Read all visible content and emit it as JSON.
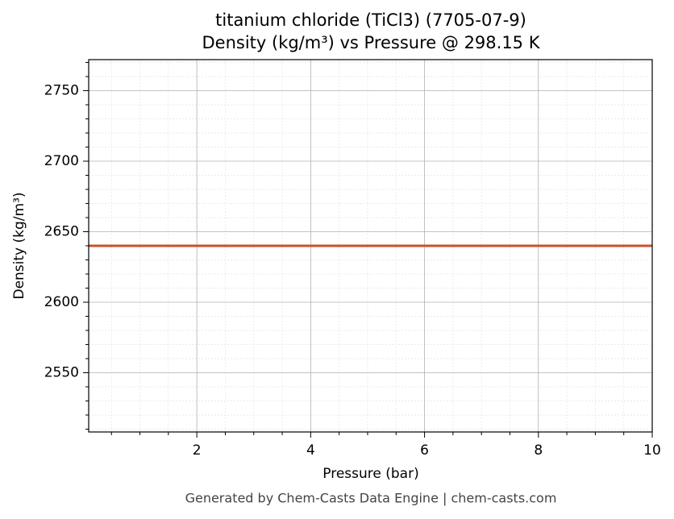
{
  "chart_data": {
    "type": "line",
    "title": "titanium chloride (TiCl3) (7705-07-9)",
    "subtitle": "Density (kg/m³) vs Pressure @ 298.15 K",
    "x_label": "Pressure (bar)",
    "y_label": "Density (kg/m³)",
    "footer": "Generated by Chem-Casts Data Engine | chem-casts.com",
    "x": [
      0.1,
      10
    ],
    "series": [
      {
        "color": "#c8522a",
        "values": [
          2640,
          2640
        ]
      }
    ],
    "xlim": [
      0.1,
      10
    ],
    "xticks": [
      2,
      4,
      6,
      8,
      10
    ],
    "xminorticks": [
      0.5,
      1,
      1.5,
      2.5,
      3,
      3.5,
      4.5,
      5,
      5.5,
      6.5,
      7,
      7.5,
      8.5,
      9,
      9.5
    ],
    "ylim": [
      2508,
      2772
    ],
    "yticks": [
      2550,
      2600,
      2650,
      2700,
      2750
    ],
    "yminorticks": [
      2510,
      2520,
      2530,
      2540,
      2560,
      2570,
      2580,
      2590,
      2610,
      2620,
      2630,
      2640,
      2660,
      2670,
      2680,
      2690,
      2710,
      2720,
      2730,
      2740,
      2760,
      2770
    ],
    "grid": true
  }
}
